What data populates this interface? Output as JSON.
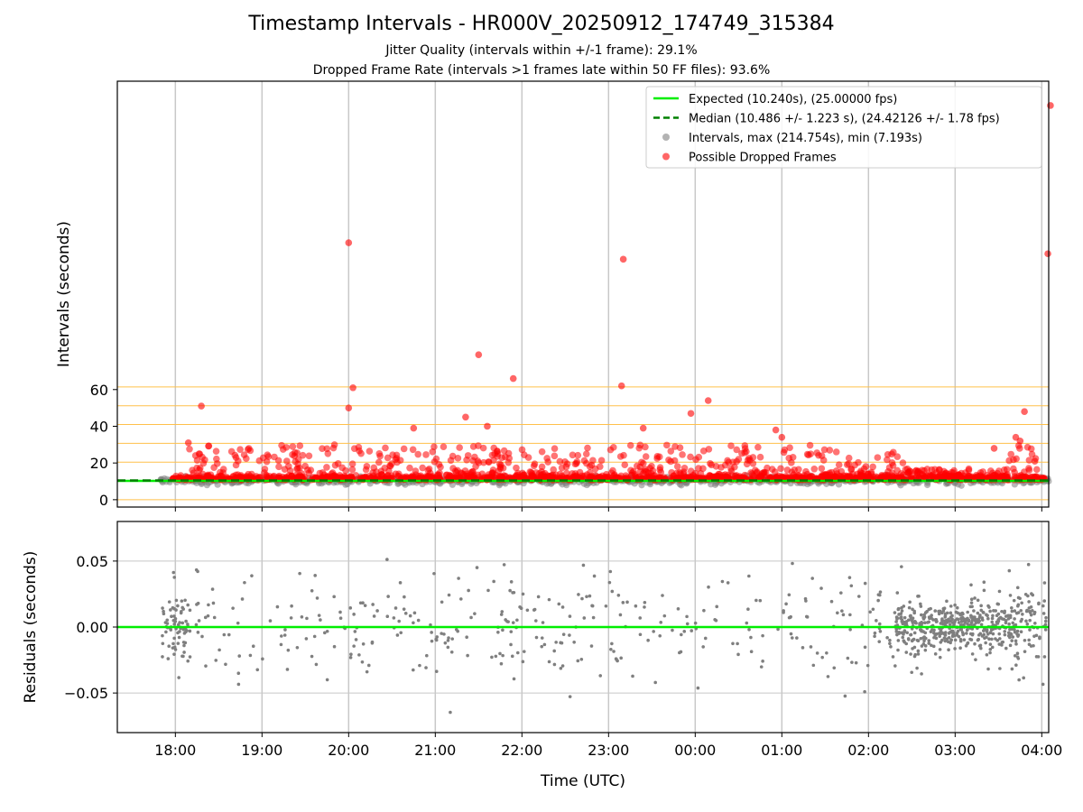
{
  "title": "Timestamp Intervals - HR000V_20250912_174749_315384",
  "subtitle_lines": [
    "Jitter Quality (intervals within +/-1 frame): 29.1%",
    "Dropped Frame Rate (intervals >1 frames late within 50 FF files): 93.6%"
  ],
  "colors": {
    "expected": "#00ee00",
    "median": "#008000",
    "intervals": "#808080",
    "dropped": "#ff0000",
    "threshold_lines": "#ffc04a",
    "residuals": "#7f7f7f",
    "grid": "#c8c8c8"
  },
  "chart_data": [
    {
      "type": "scatter",
      "panel": "top",
      "ylabel": "Intervals (seconds)",
      "xlabel": "",
      "x_range_hours": [
        17.33,
        28.08
      ],
      "ylim": [
        -4,
        228
      ],
      "y_ticks": [
        0,
        20,
        40,
        60
      ],
      "y_tick_labels": [
        "0",
        "20",
        "40",
        "60"
      ],
      "x_ticks_hours": [
        18,
        19,
        20,
        21,
        22,
        23,
        24,
        25,
        26,
        27,
        28
      ],
      "horizontal_threshold_lines": [
        0,
        10.24,
        20.48,
        30.72,
        40.96,
        51.2,
        61.44
      ],
      "grid": "vertical at x ticks",
      "legend": {
        "placement": "top-right",
        "entries": [
          {
            "label": "Expected (10.240s), (25.00000 fps)",
            "marker": "line",
            "color": "#00ee00"
          },
          {
            "label": "Median (10.486 +/- 1.223 s), (24.42126 +/- 1.78 fps)",
            "marker": "dashed-line",
            "color": "#008000"
          },
          {
            "label": "Intervals, max (214.754s), min (7.193s)",
            "marker": "dot",
            "color": "#808080"
          },
          {
            "label": "Possible Dropped Frames",
            "marker": "dot",
            "color": "#ff0000"
          }
        ]
      },
      "expected_interval": 10.24,
      "median_interval": 10.486,
      "interval_range": {
        "min": 7.193,
        "max": 214.754
      },
      "outliers": [
        {
          "x": 20.0,
          "y": 140
        },
        {
          "x": 23.17,
          "y": 131
        },
        {
          "x": 28.07,
          "y": 134
        },
        {
          "x": 28.1,
          "y": 214.754
        },
        {
          "x": 21.5,
          "y": 79
        },
        {
          "x": 21.9,
          "y": 66
        },
        {
          "x": 20.05,
          "y": 61
        },
        {
          "x": 23.15,
          "y": 62
        },
        {
          "x": 24.15,
          "y": 54
        },
        {
          "x": 18.3,
          "y": 51
        },
        {
          "x": 20.0,
          "y": 50
        },
        {
          "x": 23.95,
          "y": 47
        },
        {
          "x": 27.8,
          "y": 48
        },
        {
          "x": 21.35,
          "y": 45
        },
        {
          "x": 21.6,
          "y": 40
        },
        {
          "x": 23.4,
          "y": 39
        },
        {
          "x": 20.75,
          "y": 39
        },
        {
          "x": 24.93,
          "y": 38
        },
        {
          "x": 25.0,
          "y": 34
        },
        {
          "x": 27.7,
          "y": 34
        },
        {
          "x": 27.75,
          "y": 32
        },
        {
          "x": 18.15,
          "y": 31
        },
        {
          "x": 27.45,
          "y": 28
        },
        {
          "x": 27.92,
          "y": 21
        }
      ]
    },
    {
      "type": "scatter",
      "panel": "bottom",
      "ylabel": "Residuals (seconds)",
      "xlabel": "Time (UTC)",
      "x_range_hours": [
        17.33,
        28.08
      ],
      "ylim": [
        -0.08,
        0.08
      ],
      "y_ticks": [
        -0.05,
        0.0,
        0.05
      ],
      "y_tick_labels": [
        "−0.05",
        "0.00",
        "0.05"
      ],
      "x_tick_labels": [
        "18:00",
        "19:00",
        "20:00",
        "21:00",
        "22:00",
        "23:00",
        "00:00",
        "01:00",
        "02:00",
        "03:00",
        "04:00"
      ],
      "grid": "on",
      "zero_line": 0.0,
      "residual_spread_sd": 0.015
    }
  ]
}
